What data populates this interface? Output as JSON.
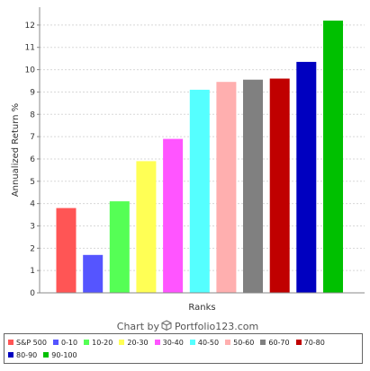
{
  "chart_data": {
    "type": "bar",
    "categories": [
      "S&P 500",
      "0-10",
      "10-20",
      "20-30",
      "30-40",
      "40-50",
      "50-60",
      "60-70",
      "70-80",
      "80-90",
      "90-100"
    ],
    "values": [
      3.8,
      1.7,
      4.1,
      5.9,
      6.9,
      9.1,
      9.45,
      9.55,
      9.6,
      10.35,
      12.2
    ],
    "colors": [
      "#ff5555",
      "#5555ff",
      "#55ff55",
      "#ffff55",
      "#ff55ff",
      "#55ffff",
      "#ffafaf",
      "#808080",
      "#c00000",
      "#0000c0",
      "#00c000"
    ],
    "xlabel": "Ranks",
    "ylabel": "Annualized Return %",
    "ylim": [
      0,
      12.8
    ],
    "yticks": [
      0,
      1,
      2,
      3,
      4,
      5,
      6,
      7,
      8,
      9,
      10,
      11,
      12
    ],
    "grid": true,
    "legend_placement": "bottom"
  },
  "credit": {
    "prefix": "Chart by",
    "icon": "cube-icon",
    "brand": "Portfolio123.com"
  }
}
